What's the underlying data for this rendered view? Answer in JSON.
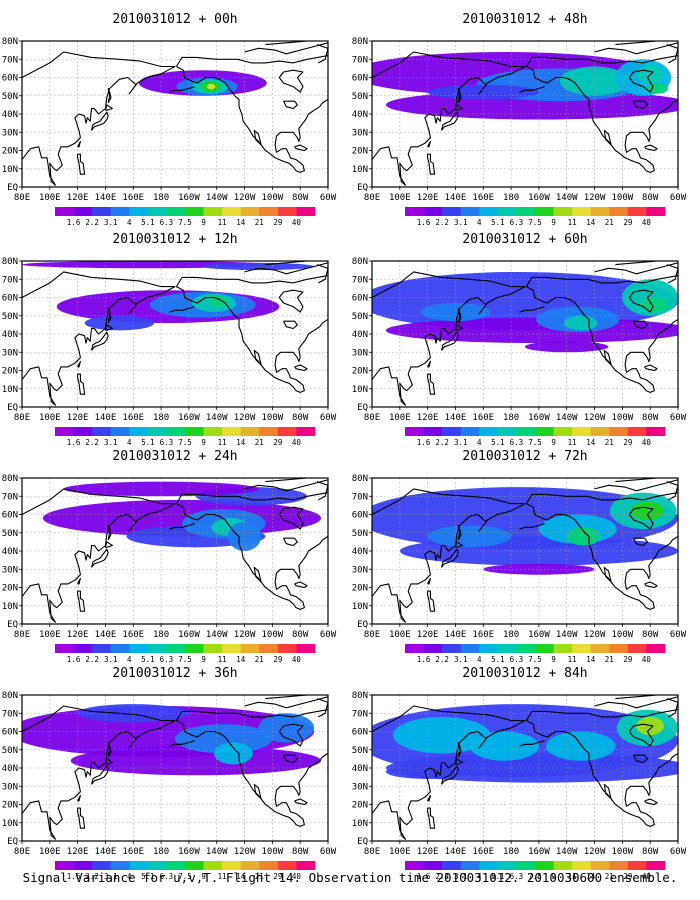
{
  "caption": "Signal Variance for u,v,T. Flight 14. Observation time 2010031012. 2010030600 ensemble.",
  "colorbar": {
    "labels": [
      "1.6",
      "2.2",
      "3.1",
      "4",
      "5.1",
      "6.3",
      "7.5",
      "9",
      "11",
      "14",
      "21",
      "29",
      "40"
    ],
    "colors": [
      "#a000e0",
      "#7a00e8",
      "#3a40f0",
      "#1e7cf0",
      "#00b4e6",
      "#00c8b4",
      "#00d278",
      "#1ed21e",
      "#a0dc14",
      "#e6dc32",
      "#e6af2d",
      "#f0822d",
      "#fa3c3c",
      "#f00082"
    ]
  },
  "axes": {
    "x_labels": [
      "80E",
      "100E",
      "120E",
      "140E",
      "160E",
      "180",
      "160W",
      "140W",
      "120W",
      "100W",
      "80W",
      "60W"
    ],
    "y_labels": [
      "80N",
      "70N",
      "60N",
      "50N",
      "40N",
      "30N",
      "20N",
      "10N",
      "EQ"
    ]
  },
  "colors": {
    "land_outline": "#000000",
    "grid": "#9a9a9a",
    "frame": "#000000",
    "background": "#ffffff"
  },
  "panels": [
    {
      "id": "p00",
      "title": "2010031012 + 00h",
      "intensity": 0
    },
    {
      "id": "p48",
      "title": "2010031012 + 48h",
      "intensity": 4
    },
    {
      "id": "p12",
      "title": "2010031012 + 12h",
      "intensity": 1
    },
    {
      "id": "p60",
      "title": "2010031012 + 60h",
      "intensity": 5
    },
    {
      "id": "p24",
      "title": "2010031012 + 24h",
      "intensity": 2
    },
    {
      "id": "p72",
      "title": "2010031012 + 72h",
      "intensity": 6
    },
    {
      "id": "p36",
      "title": "2010031012 + 36h",
      "intensity": 3
    },
    {
      "id": "p84",
      "title": "2010031012 + 84h",
      "intensity": 7
    }
  ]
}
